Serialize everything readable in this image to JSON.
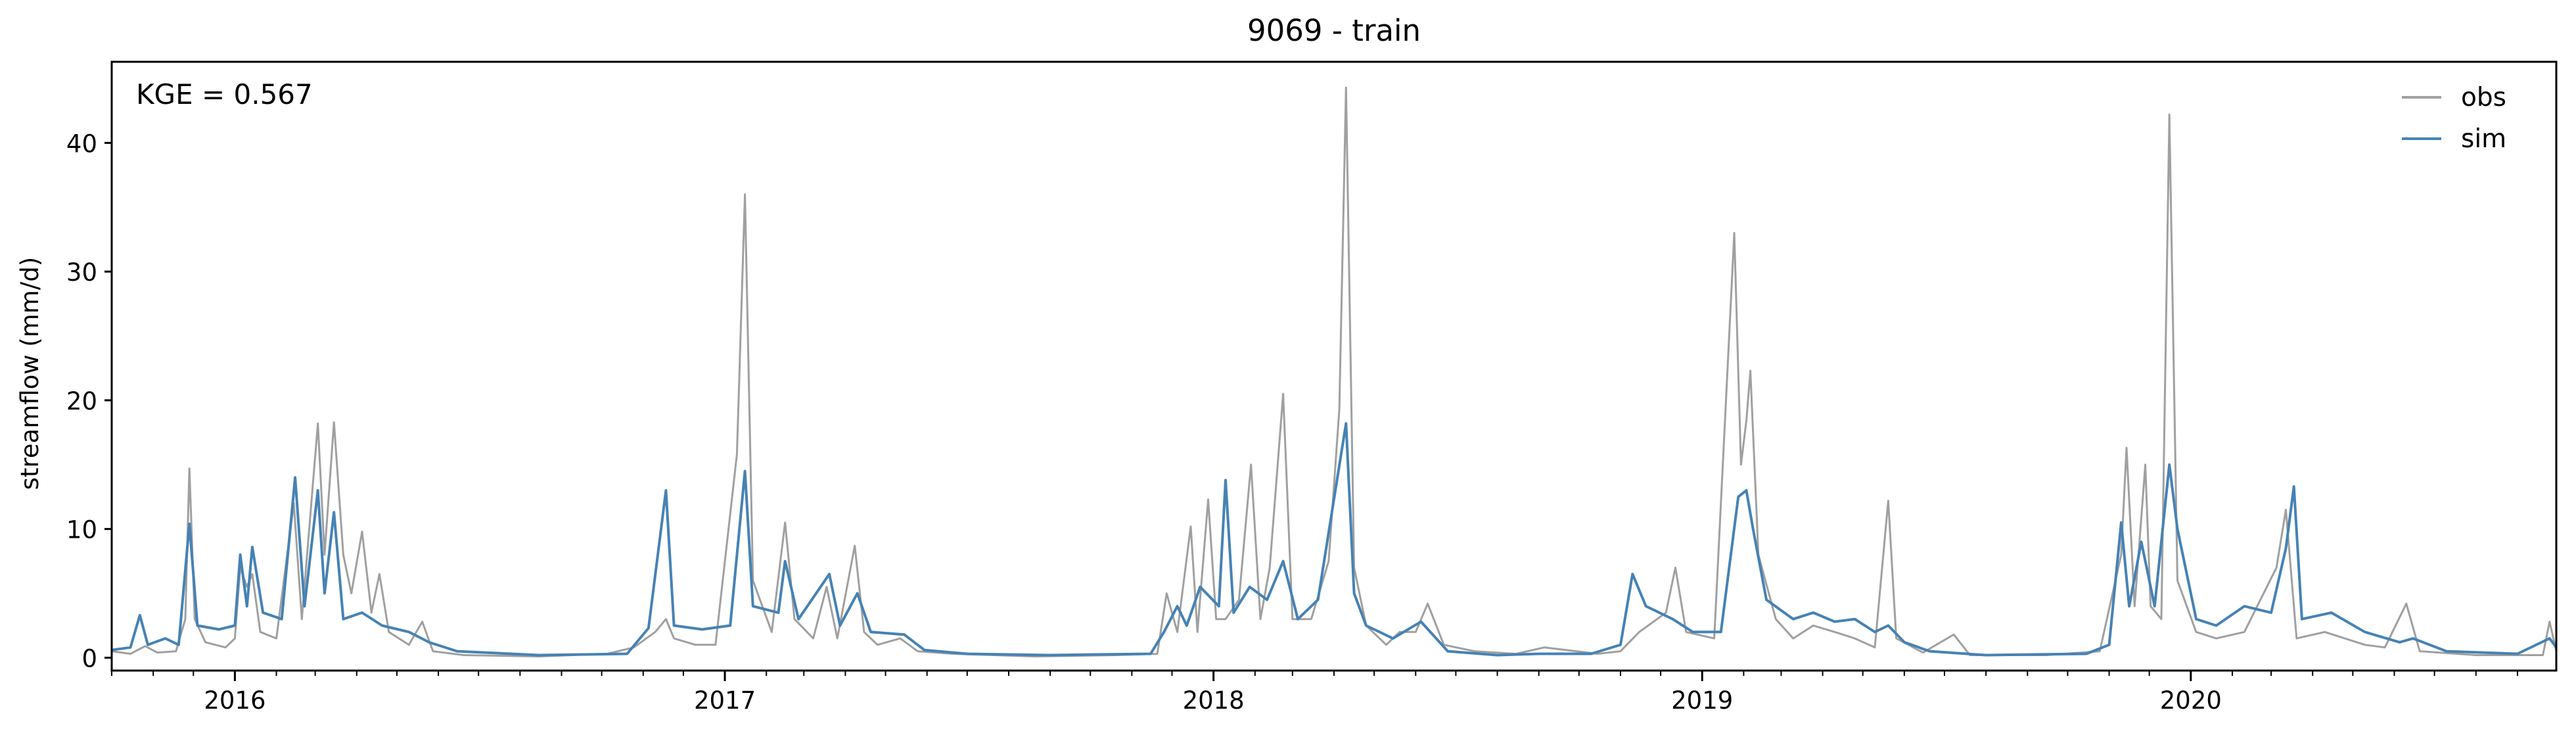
{
  "chart_data": {
    "type": "line",
    "title": "9069 - train",
    "xlabel": "",
    "ylabel": "streamflow (mm/d)",
    "annotation": "KGE = 0.567",
    "xlim": [
      "2015-10-01",
      "2020-09-30"
    ],
    "ylim": [
      -1,
      46.3
    ],
    "x_ticks": [
      "2016",
      "2017",
      "2018",
      "2019",
      "2020"
    ],
    "y_ticks": [
      0,
      10,
      20,
      30,
      40
    ],
    "legend_position": "top-right",
    "grid": false,
    "series": [
      {
        "name": "obs",
        "color": "#a0a0a0",
        "points": [
          [
            "2015-10-01",
            0.5
          ],
          [
            "2015-10-15",
            0.3
          ],
          [
            "2015-10-26",
            0.9
          ],
          [
            "2015-11-04",
            0.4
          ],
          [
            "2015-11-18",
            0.5
          ],
          [
            "2015-11-25",
            3.0
          ],
          [
            "2015-11-28",
            14.7
          ],
          [
            "2015-12-02",
            3.0
          ],
          [
            "2015-12-10",
            1.2
          ],
          [
            "2015-12-25",
            0.8
          ],
          [
            "2016-01-01",
            1.5
          ],
          [
            "2016-01-05",
            7.0
          ],
          [
            "2016-01-10",
            5.5
          ],
          [
            "2016-01-14",
            6.5
          ],
          [
            "2016-01-20",
            2.0
          ],
          [
            "2016-02-01",
            1.5
          ],
          [
            "2016-02-14",
            12.0
          ],
          [
            "2016-02-20",
            3.0
          ],
          [
            "2016-03-03",
            18.2
          ],
          [
            "2016-03-08",
            8.0
          ],
          [
            "2016-03-15",
            18.3
          ],
          [
            "2016-03-22",
            8.0
          ],
          [
            "2016-03-28",
            5.0
          ],
          [
            "2016-04-05",
            9.8
          ],
          [
            "2016-04-12",
            3.5
          ],
          [
            "2016-04-18",
            6.5
          ],
          [
            "2016-04-25",
            2.0
          ],
          [
            "2016-05-10",
            1.0
          ],
          [
            "2016-05-20",
            2.8
          ],
          [
            "2016-05-28",
            0.5
          ],
          [
            "2016-06-20",
            0.2
          ],
          [
            "2016-08-15",
            0.1
          ],
          [
            "2016-10-05",
            0.3
          ],
          [
            "2016-10-25",
            0.8
          ],
          [
            "2016-11-10",
            2.0
          ],
          [
            "2016-11-18",
            3.0
          ],
          [
            "2016-11-24",
            1.5
          ],
          [
            "2016-12-10",
            1.0
          ],
          [
            "2016-12-25",
            1.0
          ],
          [
            "2017-01-10",
            15.8
          ],
          [
            "2017-01-16",
            36.0
          ],
          [
            "2017-01-22",
            6.0
          ],
          [
            "2017-02-05",
            2.0
          ],
          [
            "2017-02-15",
            10.5
          ],
          [
            "2017-02-22",
            3.0
          ],
          [
            "2017-03-08",
            1.5
          ],
          [
            "2017-03-18",
            5.5
          ],
          [
            "2017-03-26",
            1.5
          ],
          [
            "2017-04-08",
            8.7
          ],
          [
            "2017-04-15",
            2.0
          ],
          [
            "2017-04-25",
            1.0
          ],
          [
            "2017-05-12",
            1.5
          ],
          [
            "2017-05-25",
            0.5
          ],
          [
            "2017-06-20",
            0.3
          ],
          [
            "2017-08-20",
            0.1
          ],
          [
            "2017-10-20",
            0.2
          ],
          [
            "2017-11-20",
            0.3
          ],
          [
            "2017-11-27",
            5.0
          ],
          [
            "2017-12-05",
            2.0
          ],
          [
            "2017-12-15",
            10.2
          ],
          [
            "2017-12-20",
            2.0
          ],
          [
            "2017-12-28",
            12.3
          ],
          [
            "2018-01-03",
            3.0
          ],
          [
            "2018-01-10",
            3.0
          ],
          [
            "2018-01-20",
            4.5
          ],
          [
            "2018-01-29",
            15.0
          ],
          [
            "2018-02-05",
            3.0
          ],
          [
            "2018-02-12",
            7.0
          ],
          [
            "2018-02-22",
            20.5
          ],
          [
            "2018-03-01",
            3.0
          ],
          [
            "2018-03-15",
            3.0
          ],
          [
            "2018-03-28",
            7.5
          ],
          [
            "2018-04-05",
            19.3
          ],
          [
            "2018-04-10",
            44.3
          ],
          [
            "2018-04-16",
            7.0
          ],
          [
            "2018-04-25",
            2.5
          ],
          [
            "2018-05-10",
            1.0
          ],
          [
            "2018-05-20",
            2.0
          ],
          [
            "2018-06-01",
            2.0
          ],
          [
            "2018-06-10",
            4.2
          ],
          [
            "2018-06-22",
            1.0
          ],
          [
            "2018-07-15",
            0.5
          ],
          [
            "2018-08-15",
            0.3
          ],
          [
            "2018-09-05",
            0.8
          ],
          [
            "2018-10-15",
            0.3
          ],
          [
            "2018-11-01",
            0.5
          ],
          [
            "2018-11-15",
            2.0
          ],
          [
            "2018-12-05",
            3.5
          ],
          [
            "2018-12-12",
            7.0
          ],
          [
            "2018-12-20",
            2.0
          ],
          [
            "2019-01-10",
            1.5
          ],
          [
            "2019-01-25",
            33.0
          ],
          [
            "2019-01-30",
            15.0
          ],
          [
            "2019-02-03",
            18.4
          ],
          [
            "2019-02-06",
            22.3
          ],
          [
            "2019-02-12",
            8.0
          ],
          [
            "2019-02-25",
            3.0
          ],
          [
            "2019-03-10",
            1.5
          ],
          [
            "2019-03-25",
            2.5
          ],
          [
            "2019-04-10",
            2.0
          ],
          [
            "2019-04-25",
            1.5
          ],
          [
            "2019-05-10",
            0.8
          ],
          [
            "2019-05-20",
            12.2
          ],
          [
            "2019-05-26",
            1.5
          ],
          [
            "2019-06-15",
            0.4
          ],
          [
            "2019-07-08",
            1.8
          ],
          [
            "2019-07-20",
            0.2
          ],
          [
            "2019-09-15",
            0.2
          ],
          [
            "2019-10-25",
            0.5
          ],
          [
            "2019-11-10",
            8.0
          ],
          [
            "2019-11-14",
            16.3
          ],
          [
            "2019-11-20",
            4.0
          ],
          [
            "2019-11-28",
            15.0
          ],
          [
            "2019-12-02",
            4.0
          ],
          [
            "2019-12-10",
            3.0
          ],
          [
            "2019-12-16",
            42.2
          ],
          [
            "2019-12-22",
            6.0
          ],
          [
            "2020-01-05",
            2.0
          ],
          [
            "2020-01-20",
            1.5
          ],
          [
            "2020-02-10",
            2.0
          ],
          [
            "2020-03-05",
            7.0
          ],
          [
            "2020-03-12",
            11.5
          ],
          [
            "2020-03-20",
            1.5
          ],
          [
            "2020-04-10",
            2.0
          ],
          [
            "2020-05-10",
            1.0
          ],
          [
            "2020-05-25",
            0.8
          ],
          [
            "2020-06-10",
            4.2
          ],
          [
            "2020-06-20",
            0.5
          ],
          [
            "2020-08-01",
            0.2
          ],
          [
            "2020-09-20",
            0.2
          ],
          [
            "2020-09-25",
            2.8
          ],
          [
            "2020-09-30",
            0.5
          ]
        ]
      },
      {
        "name": "sim",
        "color": "#4682b4",
        "points": [
          [
            "2015-10-01",
            0.6
          ],
          [
            "2015-10-15",
            0.8
          ],
          [
            "2015-10-22",
            3.3
          ],
          [
            "2015-10-28",
            1.0
          ],
          [
            "2015-11-10",
            1.5
          ],
          [
            "2015-11-20",
            1.0
          ],
          [
            "2015-11-28",
            10.4
          ],
          [
            "2015-12-04",
            2.5
          ],
          [
            "2015-12-20",
            2.2
          ],
          [
            "2016-01-01",
            2.5
          ],
          [
            "2016-01-05",
            8.0
          ],
          [
            "2016-01-10",
            4.0
          ],
          [
            "2016-01-14",
            8.6
          ],
          [
            "2016-01-22",
            3.5
          ],
          [
            "2016-02-05",
            3.0
          ],
          [
            "2016-02-15",
            14.0
          ],
          [
            "2016-02-22",
            4.0
          ],
          [
            "2016-03-03",
            13.0
          ],
          [
            "2016-03-08",
            5.0
          ],
          [
            "2016-03-15",
            11.3
          ],
          [
            "2016-03-22",
            3.0
          ],
          [
            "2016-04-05",
            3.5
          ],
          [
            "2016-04-20",
            2.5
          ],
          [
            "2016-05-10",
            2.0
          ],
          [
            "2016-05-25",
            1.2
          ],
          [
            "2016-06-15",
            0.5
          ],
          [
            "2016-08-15",
            0.2
          ],
          [
            "2016-10-20",
            0.3
          ],
          [
            "2016-11-05",
            2.3
          ],
          [
            "2016-11-18",
            13.0
          ],
          [
            "2016-11-24",
            2.5
          ],
          [
            "2016-12-15",
            2.2
          ],
          [
            "2017-01-05",
            2.5
          ],
          [
            "2017-01-16",
            14.5
          ],
          [
            "2017-01-22",
            4.0
          ],
          [
            "2017-02-10",
            3.5
          ],
          [
            "2017-02-15",
            7.5
          ],
          [
            "2017-02-25",
            3.0
          ],
          [
            "2017-03-20",
            6.5
          ],
          [
            "2017-03-28",
            2.5
          ],
          [
            "2017-04-10",
            5.0
          ],
          [
            "2017-04-20",
            2.0
          ],
          [
            "2017-05-15",
            1.8
          ],
          [
            "2017-05-30",
            0.6
          ],
          [
            "2017-07-01",
            0.3
          ],
          [
            "2017-09-01",
            0.2
          ],
          [
            "2017-11-15",
            0.3
          ],
          [
            "2017-11-25",
            2.0
          ],
          [
            "2017-12-05",
            4.0
          ],
          [
            "2017-12-12",
            2.5
          ],
          [
            "2017-12-22",
            5.5
          ],
          [
            "2018-01-05",
            4.0
          ],
          [
            "2018-01-10",
            13.8
          ],
          [
            "2018-01-16",
            3.5
          ],
          [
            "2018-01-28",
            5.5
          ],
          [
            "2018-02-10",
            4.5
          ],
          [
            "2018-02-22",
            7.5
          ],
          [
            "2018-03-05",
            3.0
          ],
          [
            "2018-03-20",
            4.5
          ],
          [
            "2018-04-10",
            18.2
          ],
          [
            "2018-04-16",
            5.0
          ],
          [
            "2018-04-25",
            2.5
          ],
          [
            "2018-05-15",
            1.5
          ],
          [
            "2018-06-05",
            2.8
          ],
          [
            "2018-06-25",
            0.5
          ],
          [
            "2018-08-01",
            0.2
          ],
          [
            "2018-09-01",
            0.3
          ],
          [
            "2018-10-10",
            0.3
          ],
          [
            "2018-11-01",
            1.0
          ],
          [
            "2018-11-10",
            6.5
          ],
          [
            "2018-11-20",
            4.0
          ],
          [
            "2018-12-10",
            3.0
          ],
          [
            "2018-12-25",
            2.0
          ],
          [
            "2019-01-15",
            2.0
          ],
          [
            "2019-01-28",
            12.5
          ],
          [
            "2019-02-03",
            13.0
          ],
          [
            "2019-02-08",
            10.0
          ],
          [
            "2019-02-18",
            4.5
          ],
          [
            "2019-03-10",
            3.0
          ],
          [
            "2019-03-25",
            3.5
          ],
          [
            "2019-04-10",
            2.8
          ],
          [
            "2019-04-25",
            3.0
          ],
          [
            "2019-05-10",
            2.0
          ],
          [
            "2019-05-20",
            2.5
          ],
          [
            "2019-06-01",
            1.2
          ],
          [
            "2019-06-20",
            0.5
          ],
          [
            "2019-08-01",
            0.2
          ],
          [
            "2019-10-15",
            0.3
          ],
          [
            "2019-11-01",
            1.0
          ],
          [
            "2019-11-10",
            10.5
          ],
          [
            "2019-11-16",
            4.0
          ],
          [
            "2019-11-25",
            9.0
          ],
          [
            "2019-12-05",
            4.0
          ],
          [
            "2019-12-16",
            15.0
          ],
          [
            "2019-12-22",
            10.0
          ],
          [
            "2020-01-05",
            3.0
          ],
          [
            "2020-01-20",
            2.5
          ],
          [
            "2020-02-10",
            4.0
          ],
          [
            "2020-03-01",
            3.5
          ],
          [
            "2020-03-12",
            8.5
          ],
          [
            "2020-03-18",
            13.3
          ],
          [
            "2020-03-24",
            3.0
          ],
          [
            "2020-04-15",
            3.5
          ],
          [
            "2020-05-10",
            2.0
          ],
          [
            "2020-06-05",
            1.2
          ],
          [
            "2020-06-15",
            1.5
          ],
          [
            "2020-07-10",
            0.5
          ],
          [
            "2020-09-01",
            0.3
          ],
          [
            "2020-09-25",
            1.5
          ],
          [
            "2020-09-30",
            0.8
          ]
        ]
      }
    ]
  }
}
